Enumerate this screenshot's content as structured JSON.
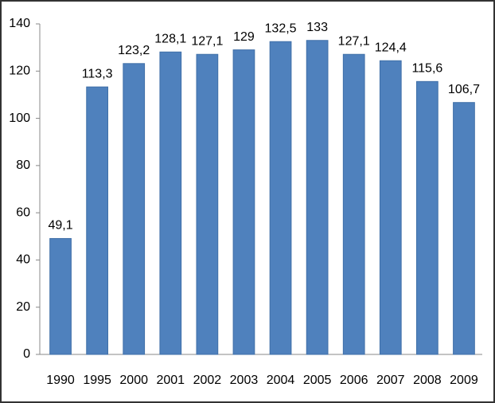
{
  "chart_data": {
    "type": "bar",
    "categories": [
      "1990",
      "1995",
      "2000",
      "2001",
      "2002",
      "2003",
      "2004",
      "2005",
      "2006",
      "2007",
      "2008",
      "2009"
    ],
    "values": [
      49.1,
      113.3,
      123.2,
      128.1,
      127.1,
      129,
      132.5,
      133,
      127.1,
      124.4,
      115.6,
      106.7
    ],
    "value_labels": [
      "49,1",
      "113,3",
      "123,2",
      "128,1",
      "127,1",
      "129",
      "132,5",
      "133",
      "127,1",
      "124,4",
      "115,6",
      "106,7"
    ],
    "color": "#4f81bd",
    "ylim": [
      0,
      140
    ],
    "yticks": [
      0,
      20,
      40,
      60,
      80,
      100,
      120,
      140
    ],
    "grid": false
  }
}
